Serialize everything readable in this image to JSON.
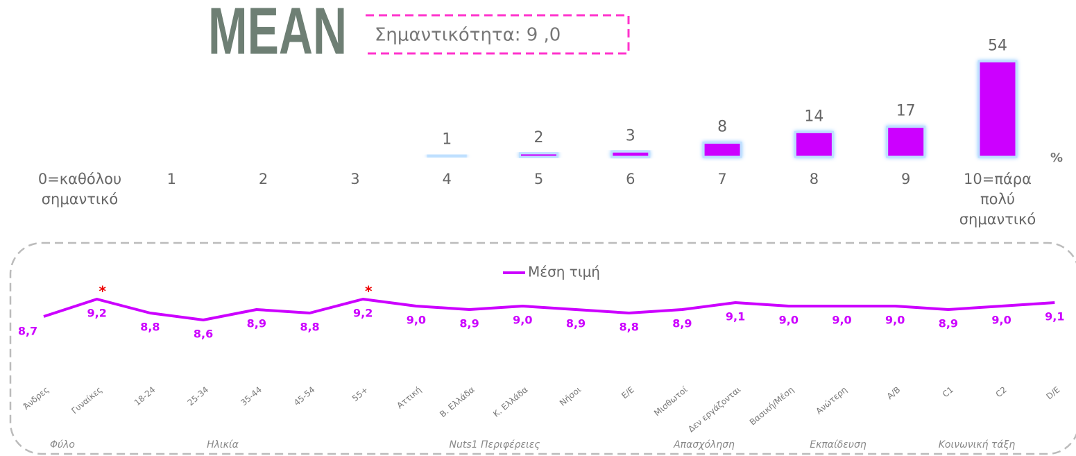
{
  "header": {
    "logo": "MEAN",
    "label": "Σημαντικότητα: 9 ,0"
  },
  "chart_data": [
    {
      "type": "bar",
      "y_label": "%",
      "categories": [
        "0=καθόλου σημαντικό",
        "1",
        "2",
        "3",
        "4",
        "5",
        "6",
        "7",
        "8",
        "9",
        "10=πάρα πολύ σημαντικό"
      ],
      "values": [
        null,
        null,
        null,
        null,
        1,
        2,
        3,
        8,
        14,
        17,
        54
      ],
      "color": "#cc00ff",
      "ylim": [
        0,
        60
      ]
    },
    {
      "type": "line",
      "categories": [
        "Άνδρες",
        "Γυναίκες",
        "18-24",
        "25-34",
        "35-44",
        "45-54",
        "55+",
        "Αττική",
        "Β. Ελλάδα",
        "Κ. Ελλάδα",
        "Νήσοι",
        "Ε/Ε",
        "Μισθωτοί",
        "Δεν εργάζονται",
        "Βασική/Μέση",
        "Ανώτερη",
        "Α/Β",
        "C1",
        "C2",
        "D/E"
      ],
      "series": [
        {
          "name": "Μέση τιμή",
          "color": "#cc00ff",
          "values": [
            8.7,
            9.2,
            8.8,
            8.6,
            8.9,
            8.8,
            9.2,
            9.0,
            8.9,
            9.0,
            8.9,
            8.8,
            8.9,
            9.1,
            9.0,
            9.0,
            9.0,
            8.9,
            9.0,
            9.1
          ],
          "value_labels": [
            "8,7",
            "9,2",
            "8,8",
            "8,6",
            "8,9",
            "8,8",
            "9,2",
            "9,0",
            "8,9",
            "9,0",
            "8,9",
            "8,8",
            "8,9",
            "9,1",
            "9,0",
            "9,0",
            "9,0",
            "8,9",
            "9,0",
            "9,1"
          ]
        }
      ],
      "ylim": [
        8,
        10
      ],
      "annotations": [
        {
          "text": "*",
          "category": "Γυναίκες"
        },
        {
          "text": "*",
          "category": "55+"
        }
      ],
      "groups": [
        "Φύλο",
        "Ηλικία",
        "Nuts1  Περιφέρειες",
        "Απασχόληση",
        "Εκπαίδευση",
        "Κοινωνική τάξη"
      ]
    }
  ]
}
